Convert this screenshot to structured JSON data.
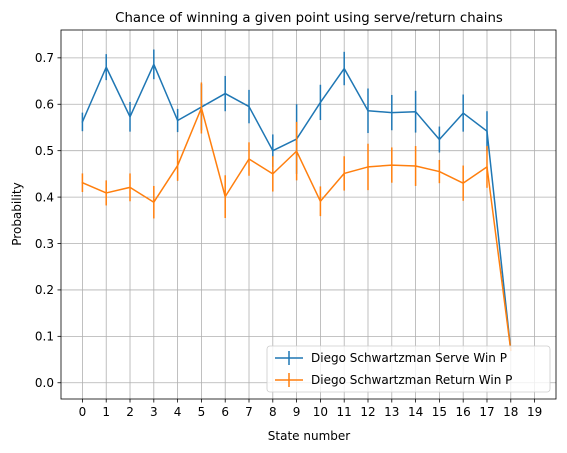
{
  "chart_data": {
    "type": "line",
    "title": "Chance of winning a given point using serve/return chains",
    "xlabel": "State number",
    "ylabel": "Probability",
    "xlim": [
      -0.9,
      19.9
    ],
    "ylim": [
      -0.035,
      0.76
    ],
    "x_ticks": [
      0,
      1,
      2,
      3,
      4,
      5,
      6,
      7,
      8,
      9,
      10,
      11,
      12,
      13,
      14,
      15,
      16,
      17,
      18,
      19
    ],
    "y_ticks": [
      0.0,
      0.1,
      0.2,
      0.3,
      0.4,
      0.5,
      0.6,
      0.7
    ],
    "y_tick_labels": [
      "0.0",
      "0.1",
      "0.2",
      "0.3",
      "0.4",
      "0.5",
      "0.6",
      "0.7"
    ],
    "grid": true,
    "legend_position": "lower-right",
    "x": [
      0,
      1,
      2,
      3,
      4,
      5,
      6,
      7,
      8,
      9,
      10,
      11,
      12,
      13,
      14,
      15,
      16,
      17,
      18
    ],
    "series": [
      {
        "name": "Diego Schwartzman Serve Win P",
        "color": "#1f77b4",
        "values": [
          0.562,
          0.68,
          0.573,
          0.686,
          0.565,
          0.594,
          0.623,
          0.595,
          0.5,
          0.525,
          0.604,
          0.677,
          0.586,
          0.582,
          0.584,
          0.524,
          0.581,
          0.542,
          0.07
        ],
        "errors": [
          0.02,
          0.028,
          0.032,
          0.032,
          0.025,
          0.05,
          0.038,
          0.036,
          0.035,
          0.075,
          0.038,
          0.036,
          0.048,
          0.038,
          0.045,
          0.028,
          0.04,
          0.043,
          0.0
        ]
      },
      {
        "name": "Diego Schwartzman Return Win P",
        "color": "#ff7f0e",
        "values": [
          0.431,
          0.409,
          0.421,
          0.389,
          0.468,
          0.592,
          0.401,
          0.482,
          0.45,
          0.499,
          0.391,
          0.451,
          0.465,
          0.469,
          0.467,
          0.455,
          0.43,
          0.465,
          0.07
        ],
        "errors": [
          0.02,
          0.027,
          0.03,
          0.035,
          0.033,
          0.055,
          0.046,
          0.036,
          0.038,
          0.063,
          0.032,
          0.037,
          0.05,
          0.038,
          0.043,
          0.025,
          0.038,
          0.045,
          0.0
        ]
      }
    ]
  }
}
